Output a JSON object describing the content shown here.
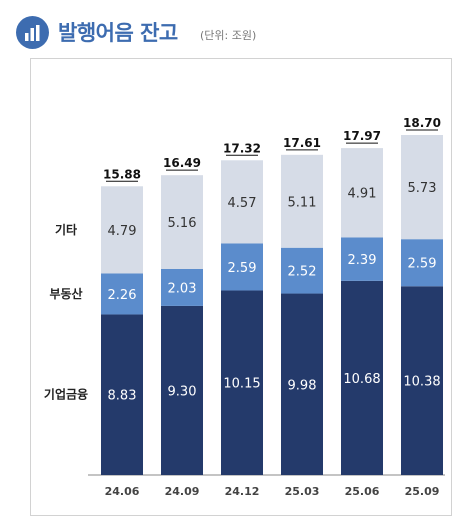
{
  "header": {
    "title": "발행어음 잔고",
    "unit": "(단위: 조원)",
    "icon": "bar-chart-icon"
  },
  "chart_data": {
    "type": "bar",
    "stacked": true,
    "categories": [
      "24.06",
      "24.09",
      "24.12",
      "25.03",
      "25.06",
      "25.09"
    ],
    "series": [
      {
        "name": "기업금융",
        "color": "#243a6b",
        "values": [
          8.83,
          9.3,
          10.15,
          9.98,
          10.68,
          10.38
        ]
      },
      {
        "name": "부동산",
        "color": "#5b8ccc",
        "values": [
          2.26,
          2.03,
          2.59,
          2.52,
          2.39,
          2.59
        ]
      },
      {
        "name": "기타",
        "color": "#d6dce7",
        "values": [
          4.79,
          5.16,
          4.57,
          5.11,
          4.91,
          5.73
        ]
      }
    ],
    "totals": [
      15.88,
      16.49,
      17.32,
      17.61,
      17.97,
      18.7
    ],
    "title": "발행어음 잔고",
    "unit": "(단위: 조원)",
    "xlabel": "",
    "ylabel": "",
    "grid": false,
    "legend": "left, row labels"
  }
}
